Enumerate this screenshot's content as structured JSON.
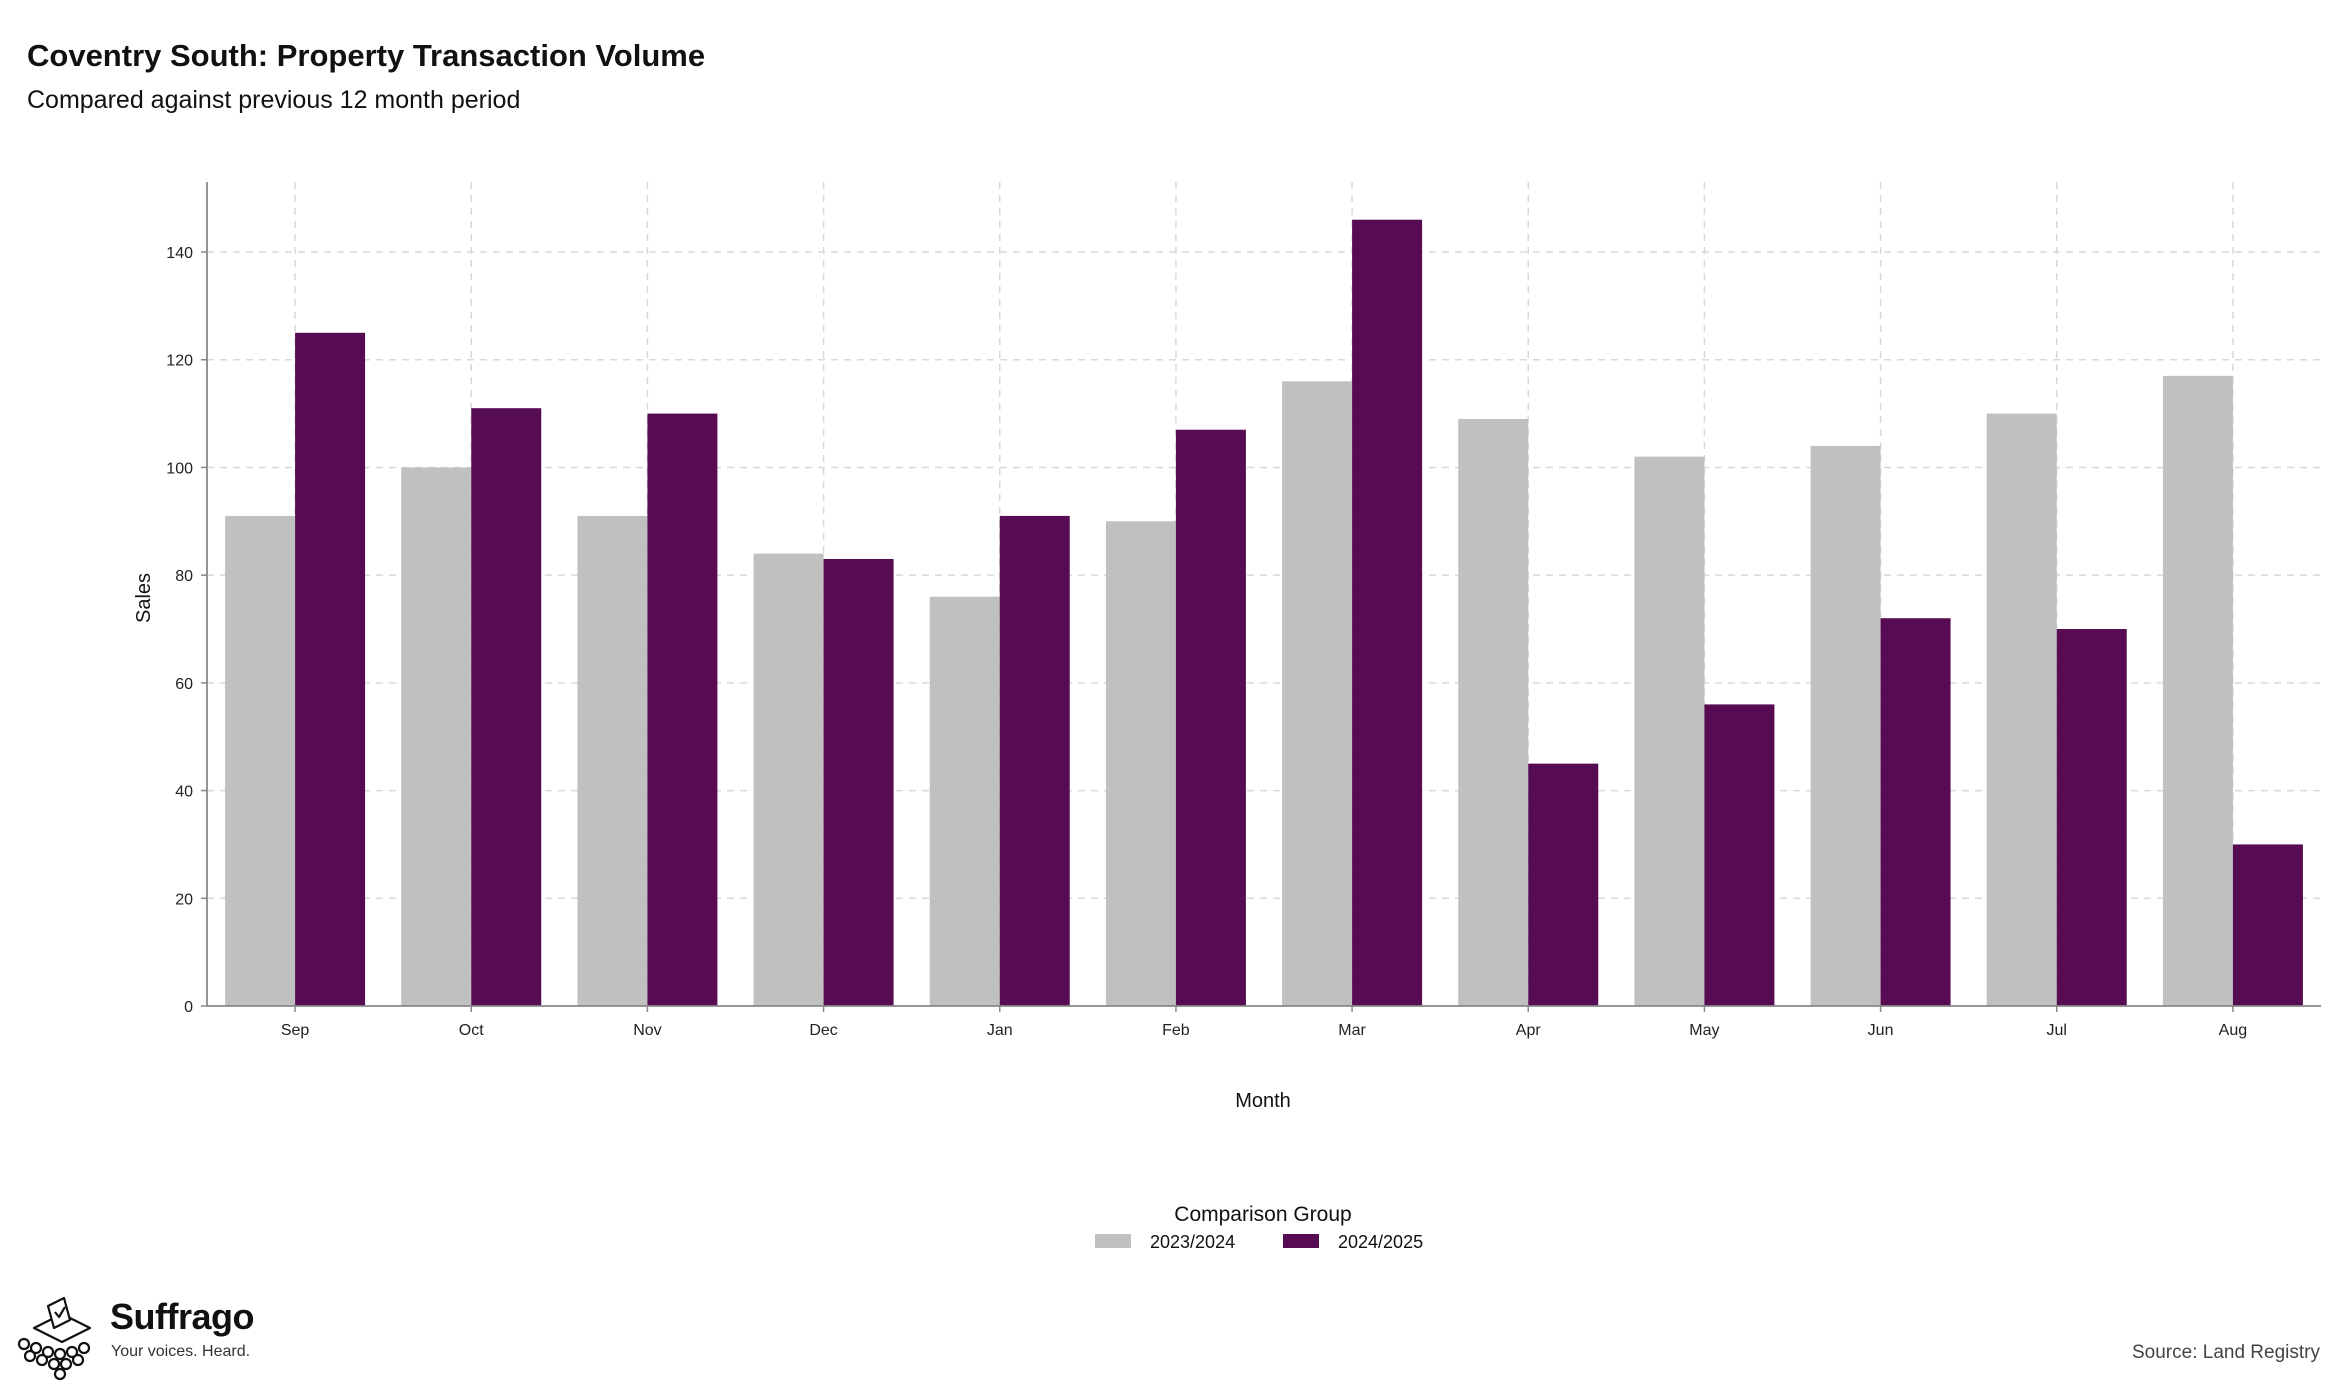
{
  "header": {
    "title": "Coventry South: Property Transaction Volume",
    "subtitle": "Compared against previous 12 month period"
  },
  "footer": {
    "brand_name": "Suffrago",
    "brand_tagline": "Your voices. Heard.",
    "source": "Source: Land Registry"
  },
  "colors": {
    "series_2023_2024": "#c0c0c0",
    "series_2024_2025": "#560b52",
    "grid": "#d9d9d9",
    "axis": "#888888"
  },
  "chart_data": {
    "type": "bar",
    "title": "Coventry South: Property Transaction Volume",
    "subtitle": "Compared against previous 12 month period",
    "xlabel": "Month",
    "ylabel": "Sales",
    "categories": [
      "Sep",
      "Oct",
      "Nov",
      "Dec",
      "Jan",
      "Feb",
      "Mar",
      "Apr",
      "May",
      "Jun",
      "Jul",
      "Aug"
    ],
    "series": [
      {
        "name": "2023/2024",
        "values": [
          91,
          100,
          91,
          84,
          76,
          90,
          116,
          109,
          102,
          104,
          110,
          117
        ]
      },
      {
        "name": "2024/2025",
        "values": [
          125,
          111,
          110,
          83,
          91,
          107,
          146,
          45,
          56,
          72,
          70,
          30
        ]
      }
    ],
    "ylim": [
      0,
      153
    ],
    "yticks": [
      0,
      20,
      40,
      60,
      80,
      100,
      120,
      140
    ],
    "grid": true,
    "legend": {
      "title": "Comparison Group",
      "position": "bottom"
    }
  }
}
